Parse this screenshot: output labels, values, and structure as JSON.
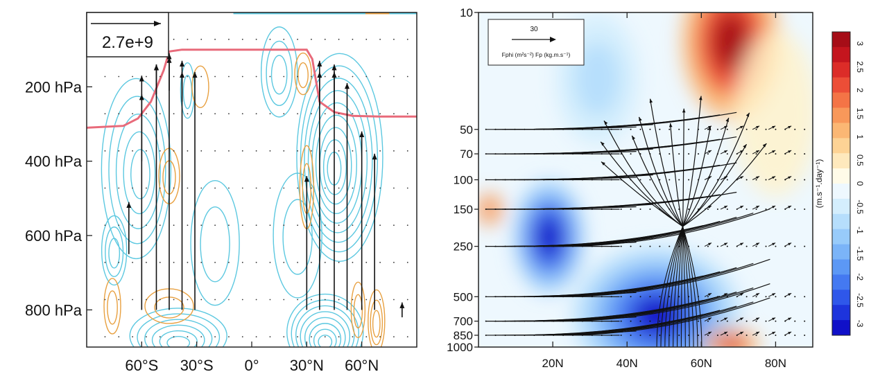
{
  "chart_data": [
    {
      "type": "contour",
      "panel": "left",
      "x_ticks": [
        "60°S",
        "30°S",
        "0°",
        "30°N",
        "60°N"
      ],
      "x_values": [
        -60,
        -30,
        0,
        30,
        60
      ],
      "xlim": [
        -90,
        90
      ],
      "y_ticks": [
        "200 hPa",
        "400 hPa",
        "600 hPa",
        "800 hPa"
      ],
      "y_values": [
        200,
        400,
        600,
        800
      ],
      "ylim": [
        900,
        0
      ],
      "reference_vector_label": "2.7e+9",
      "tropopause_hpa": [
        [
          -90,
          310
        ],
        [
          -70,
          305
        ],
        [
          -62,
          285
        ],
        [
          -55,
          240
        ],
        [
          -48,
          155
        ],
        [
          -45,
          105
        ],
        [
          -38,
          100
        ],
        [
          -20,
          100
        ],
        [
          0,
          100
        ],
        [
          20,
          100
        ],
        [
          30,
          100
        ],
        [
          33,
          125
        ],
        [
          37,
          240
        ],
        [
          45,
          268
        ],
        [
          55,
          278
        ],
        [
          70,
          280
        ],
        [
          90,
          280
        ]
      ],
      "contour_colors": {
        "positive": "#e8a040",
        "negative": "#5cc8e0",
        "tropopause": "#e86a7a"
      },
      "vectors": [
        {
          "x": -60,
          "p": 800,
          "u": 0,
          "v": 630
        },
        {
          "x": -52,
          "p": 800,
          "u": 0,
          "v": 660
        },
        {
          "x": -45,
          "p": 800,
          "u": 0,
          "v": 690
        },
        {
          "x": -38,
          "p": 800,
          "u": 0,
          "v": 670
        },
        {
          "x": -31,
          "p": 800,
          "u": 0,
          "v": 640
        },
        {
          "x": -67,
          "p": 650,
          "u": 0,
          "v": 140
        },
        {
          "x": -60,
          "p": 400,
          "u": 0,
          "v": 180
        },
        {
          "x": -52,
          "p": 220,
          "u": 0,
          "v": 80
        },
        {
          "x": -45,
          "p": 210,
          "u": 0,
          "v": 90
        },
        {
          "x": -38,
          "p": 240,
          "u": 0,
          "v": 80
        },
        {
          "x": 30,
          "p": 800,
          "u": 0,
          "v": 360
        },
        {
          "x": 37,
          "p": 800,
          "u": 0,
          "v": 640
        },
        {
          "x": 45,
          "p": 800,
          "u": 0,
          "v": 660
        },
        {
          "x": 52,
          "p": 800,
          "u": 0,
          "v": 610
        },
        {
          "x": 60,
          "p": 800,
          "u": 0,
          "v": 480
        },
        {
          "x": 67,
          "p": 800,
          "u": 0,
          "v": 420
        },
        {
          "x": 37,
          "p": 250,
          "u": 0,
          "v": 120
        },
        {
          "x": 45,
          "p": 260,
          "u": 0,
          "v": 100
        },
        {
          "x": 82,
          "p": 820,
          "u": 0,
          "v": 40
        }
      ]
    },
    {
      "type": "contour",
      "panel": "right",
      "x_ticks": [
        "20N",
        "40N",
        "60N",
        "80N"
      ],
      "x_values": [
        20,
        40,
        60,
        80
      ],
      "xlim": [
        0,
        90
      ],
      "y_ticks": [
        "10",
        "50",
        "70",
        "100",
        "150",
        "250",
        "500",
        "700",
        "850",
        "1000"
      ],
      "y_values": [
        10,
        50,
        70,
        100,
        150,
        250,
        500,
        700,
        850,
        1000
      ],
      "ylim": [
        1000,
        10
      ],
      "yscale": "log",
      "legend": {
        "vector_value": "30",
        "vector_caption": "Fphi (m²s⁻²) Fp (kg.m.s⁻¹)"
      },
      "colorbar": {
        "label": "(m.s⁻¹.day⁻¹)",
        "ticks": [
          "3",
          "2.5",
          "2",
          "1.5",
          "1",
          "0.5",
          "0",
          "-0.5",
          "-1",
          "-1.5",
          "-2",
          "-2.5",
          "-3"
        ],
        "range": [
          -3.25,
          3.25
        ],
        "colors": [
          "#1010c8",
          "#1d34dc",
          "#2f57ea",
          "#4479f1",
          "#5c98f5",
          "#7bb4f8",
          "#98cbfa",
          "#b6defc",
          "#d4eefd",
          "#eef8fe",
          "#fffbe8",
          "#fee9bd",
          "#fdd395",
          "#fbb774",
          "#f8985a",
          "#f47446",
          "#ec4e37",
          "#dc2c28",
          "#c4151e",
          "#a60d17"
        ]
      },
      "regions": [
        {
          "name": "positive-max-stratosphere",
          "lat": 68,
          "p": 15,
          "value": 3.2
        },
        {
          "name": "negative-upper-subtropics",
          "lat": 32,
          "p": 25,
          "value": -0.9
        },
        {
          "name": "negative-lower-subtropics",
          "lat": 19,
          "p": 220,
          "value": -3.0
        },
        {
          "name": "negative-lower-midlatitudes",
          "lat": 48,
          "p": 650,
          "value": -3.0
        },
        {
          "name": "positive-surface-polar",
          "lat": 68,
          "p": 960,
          "value": 2.5
        },
        {
          "name": "positive-tropics-150",
          "lat": 3,
          "p": 150,
          "value": 1.4
        }
      ],
      "vector_levels_hpa": [
        50,
        70,
        100,
        150,
        250,
        500,
        700,
        850
      ]
    }
  ]
}
